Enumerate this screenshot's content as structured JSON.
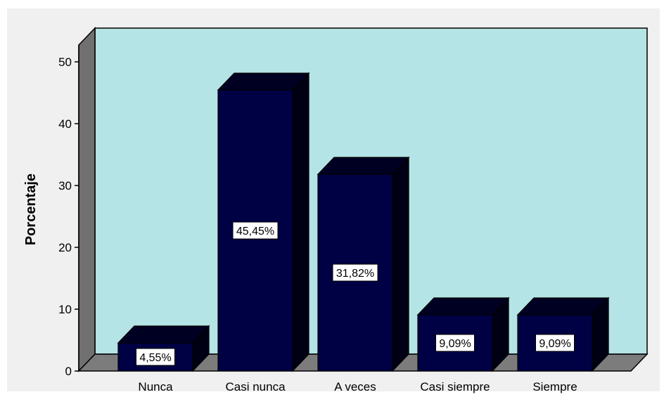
{
  "chart_data": {
    "type": "bar",
    "style": "3d",
    "categories": [
      "Nunca",
      "Casi nunca",
      "A veces",
      "Casi siempre",
      "Siempre"
    ],
    "values": [
      4.55,
      45.45,
      31.82,
      9.09,
      9.09
    ],
    "data_labels": [
      "4,55%",
      "45,45%",
      "31,82%",
      "9,09%",
      "9,09%"
    ],
    "title": "",
    "xlabel": "",
    "ylabel": "Porcentaje",
    "ylim": [
      0,
      50
    ],
    "yticks": [
      0,
      10,
      20,
      30,
      40,
      50
    ],
    "ytick_labels": [
      "0",
      "10",
      "20",
      "30",
      "40",
      "50"
    ],
    "grid": false,
    "legend": "none",
    "colors": {
      "bar": "#000044",
      "bar_top": "#000022",
      "bar_side": "#000014",
      "back_wall": "#b4e4e6",
      "side_wall": "#707070",
      "floor": "#7c7c7c",
      "page_bg": "#f0f0f0",
      "label_box": "#ffffff"
    }
  }
}
